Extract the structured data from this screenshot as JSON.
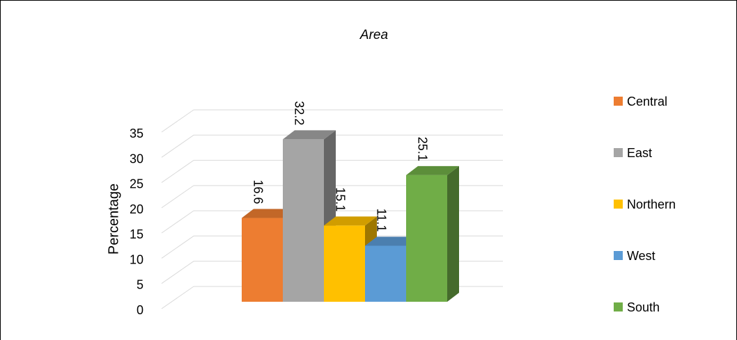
{
  "chart_data": {
    "type": "bar",
    "title": "Area",
    "xlabel": "",
    "ylabel": "Percentage",
    "ylim": [
      0,
      35
    ],
    "yticks": [
      0,
      5,
      10,
      15,
      20,
      25,
      30,
      35
    ],
    "categories": [
      "Central",
      "East",
      "Northern",
      "West",
      "South"
    ],
    "values": [
      16.6,
      32.2,
      15.1,
      11.1,
      25.1
    ],
    "colors": [
      "#ED7D31",
      "#A5A5A5",
      "#FFC000",
      "#5B9BD5",
      "#70AD47"
    ],
    "legend": [
      "Central",
      "East",
      "Northern",
      "West",
      "South"
    ],
    "legend_position": "right",
    "grid": true,
    "style": "3d-column"
  }
}
